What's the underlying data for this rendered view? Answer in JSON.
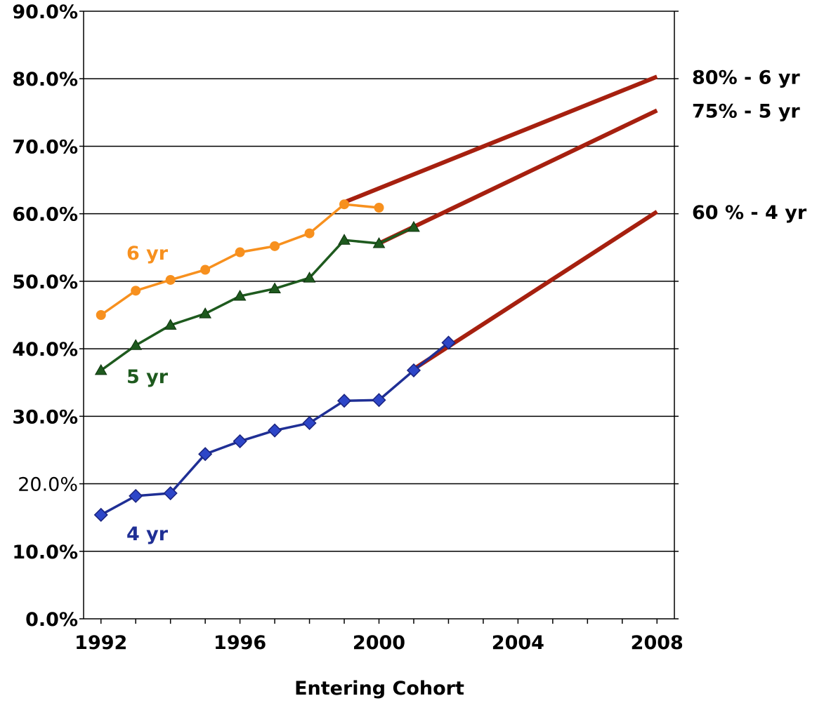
{
  "chart_data": {
    "type": "line",
    "title": "",
    "xlabel": "Entering Cohort",
    "ylabel": "",
    "xlim": [
      1991.5,
      2008.5
    ],
    "ylim": [
      0,
      90
    ],
    "x_ticks": [
      1992,
      1996,
      2000,
      2004,
      2008
    ],
    "y_ticks": [
      {
        "value": 0,
        "label": "0.0%",
        "bold": true
      },
      {
        "value": 10,
        "label": "10.0%",
        "bold": true
      },
      {
        "value": 20,
        "label": "20.0%",
        "bold": false
      },
      {
        "value": 30,
        "label": "30.0%",
        "bold": true
      },
      {
        "value": 40,
        "label": "40.0%",
        "bold": true
      },
      {
        "value": 50,
        "label": "50.0%",
        "bold": true
      },
      {
        "value": 60,
        "label": "60.0%",
        "bold": true
      },
      {
        "value": 70,
        "label": "70.0%",
        "bold": true
      },
      {
        "value": 80,
        "label": "80.0%",
        "bold": true
      },
      {
        "value": 90,
        "label": "90.0%",
        "bold": true
      }
    ],
    "grid": true,
    "series": [
      {
        "name": "6 yr",
        "color": "#f7901e",
        "marker": "circle",
        "x": [
          1992,
          1993,
          1994,
          1995,
          1996,
          1997,
          1998,
          1999,
          2000
        ],
        "y": [
          45.0,
          48.6,
          50.2,
          51.7,
          54.3,
          55.2,
          57.1,
          61.4,
          60.9
        ]
      },
      {
        "name": "5 yr",
        "color": "#1e5a1e",
        "marker": "triangle",
        "x": [
          1992,
          1993,
          1994,
          1995,
          1996,
          1997,
          1998,
          1999,
          2000,
          2001
        ],
        "y": [
          36.8,
          40.5,
          43.5,
          45.2,
          47.8,
          48.9,
          50.5,
          56.1,
          55.6,
          58.0
        ]
      },
      {
        "name": "4 yr",
        "color": "#1f2f95",
        "marker": "diamond",
        "x": [
          1992,
          1993,
          1994,
          1995,
          1996,
          1997,
          1998,
          1999,
          2000,
          2001,
          2002
        ],
        "y": [
          15.4,
          18.2,
          18.6,
          24.4,
          26.3,
          27.9,
          29.0,
          32.3,
          32.4,
          36.8,
          40.9
        ]
      }
    ],
    "target_lines": [
      {
        "label": "80% - 6 yr",
        "color": "#a6200f",
        "x": [
          1999,
          2008
        ],
        "y": [
          61.7,
          80.3
        ]
      },
      {
        "label": "75% - 5 yr",
        "color": "#a6200f",
        "x": [
          2000,
          2008
        ],
        "y": [
          55.6,
          75.3
        ]
      },
      {
        "label": "60 % - 4 yr",
        "color": "#a6200f",
        "x": [
          2001,
          2008
        ],
        "y": [
          37.0,
          60.3
        ]
      }
    ]
  }
}
